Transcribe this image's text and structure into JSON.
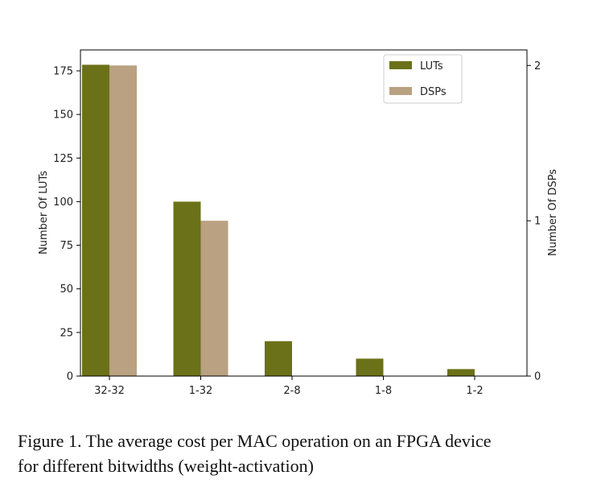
{
  "chart_data": {
    "type": "bar",
    "categories": [
      "32-32",
      "1-32",
      "2-8",
      "1-8",
      "1-2"
    ],
    "series": [
      {
        "name": "LUTs",
        "axis": "left",
        "color": "#6b7118",
        "values": [
          178.5,
          100,
          20,
          10,
          4
        ]
      },
      {
        "name": "DSPs",
        "axis": "right",
        "color": "#b9a181",
        "values": [
          2,
          1,
          0,
          0,
          0
        ]
      }
    ],
    "ylabel_left": "Number Of LUTs",
    "ylabel_right": "Number Of DSPs",
    "xlabel": "",
    "ylim_left": [
      0,
      187
    ],
    "ylim_right": [
      0,
      2.1
    ],
    "yticks_left": [
      0,
      25,
      50,
      75,
      100,
      125,
      150,
      175
    ],
    "yticks_right": [
      0,
      1,
      2
    ],
    "legend": "top-right",
    "grid": false
  },
  "caption": {
    "line1": "Figure 1. The average cost per MAC operation on an FPGA device",
    "line2": "for different bitwidths (weight-activation)"
  }
}
